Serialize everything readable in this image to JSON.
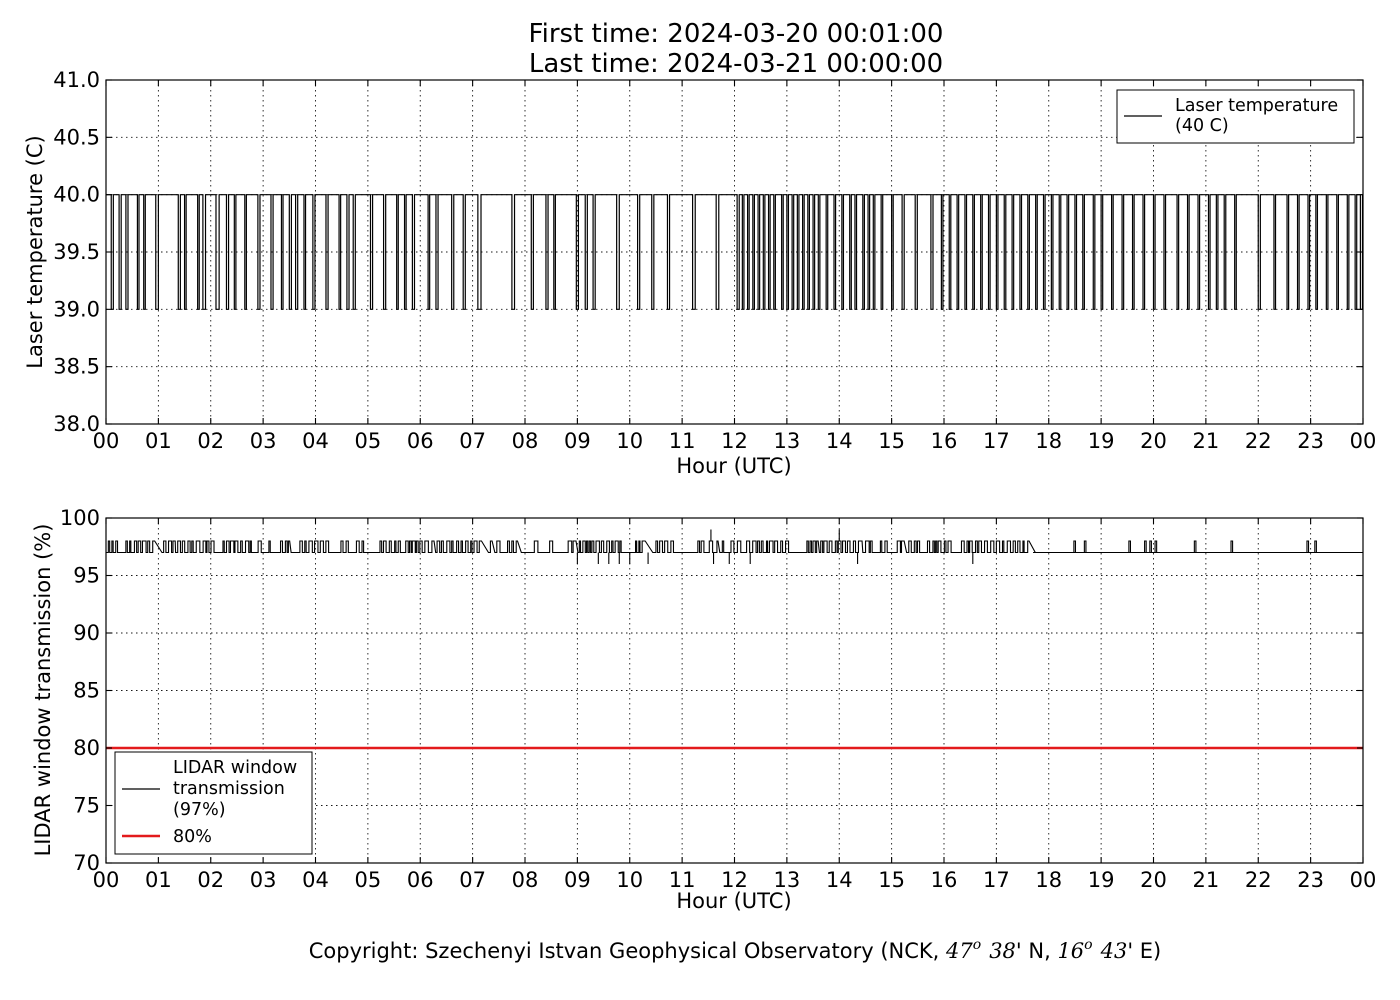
{
  "title": {
    "line1": "First time: 2024-03-20 00:01:00",
    "line2": "Last time: 2024-03-21 00:00:00"
  },
  "copyright": {
    "prefix": "Copyright: Szechenyi Istvan Geophysical Observatory (NCK, ",
    "lat_deg": "47",
    "lat_sup": "o",
    "lat_min": "38",
    "lat_suffix": "' N, ",
    "lon_deg": "16",
    "lon_sup": "o",
    "lon_min": "43",
    "lon_suffix": "' E)"
  },
  "chart_data": [
    {
      "type": "line",
      "xlabel": "Hour (UTC)",
      "ylabel": "Laser temperature (C)",
      "xlim": [
        0,
        24
      ],
      "ylim": [
        38.0,
        41.0
      ],
      "x_ticks": [
        "00",
        "01",
        "02",
        "03",
        "04",
        "05",
        "06",
        "07",
        "08",
        "09",
        "10",
        "11",
        "12",
        "13",
        "14",
        "15",
        "16",
        "17",
        "18",
        "19",
        "20",
        "21",
        "22",
        "23",
        "00"
      ],
      "y_ticks": [
        "38.0",
        "38.5",
        "39.0",
        "39.5",
        "40.0",
        "40.5",
        "41.0"
      ],
      "grid": true,
      "legend_position": "top-right",
      "series": [
        {
          "name": "Laser temperature\n(40 C)",
          "color": "#000000",
          "values_note_levels": [
            39.0,
            40.0
          ],
          "dips": [
            [
              0.1,
              0.14
            ],
            [
              0.25,
              0.29
            ],
            [
              0.38,
              0.42
            ],
            [
              0.6,
              0.63
            ],
            [
              0.72,
              0.75
            ],
            [
              0.95,
              1.0
            ],
            [
              1.38,
              1.42
            ],
            [
              1.5,
              1.53
            ],
            [
              1.75,
              1.78
            ],
            [
              1.85,
              1.9
            ],
            [
              2.1,
              2.16
            ],
            [
              2.3,
              2.34
            ],
            [
              2.45,
              2.48
            ],
            [
              2.65,
              2.68
            ],
            [
              2.9,
              2.94
            ],
            [
              3.15,
              3.19
            ],
            [
              3.35,
              3.38
            ],
            [
              3.5,
              3.54
            ],
            [
              3.62,
              3.66
            ],
            [
              3.78,
              3.81
            ],
            [
              3.95,
              3.99
            ],
            [
              4.2,
              4.24
            ],
            [
              4.45,
              4.48
            ],
            [
              4.6,
              4.64
            ],
            [
              4.72,
              4.76
            ],
            [
              5.05,
              5.09
            ],
            [
              5.3,
              5.34
            ],
            [
              5.55,
              5.58
            ],
            [
              5.7,
              5.73
            ],
            [
              5.85,
              5.89
            ],
            [
              6.15,
              6.18
            ],
            [
              6.3,
              6.34
            ],
            [
              6.6,
              6.64
            ],
            [
              6.82,
              6.86
            ],
            [
              7.1,
              7.16
            ],
            [
              7.75,
              7.8
            ],
            [
              8.12,
              8.16
            ],
            [
              8.4,
              8.44
            ],
            [
              8.55,
              8.58
            ],
            [
              8.98,
              9.02
            ],
            [
              9.15,
              9.19
            ],
            [
              9.3,
              9.34
            ],
            [
              9.75,
              9.8
            ],
            [
              10.15,
              10.19
            ],
            [
              10.42,
              10.46
            ],
            [
              10.72,
              10.76
            ],
            [
              11.2,
              11.25
            ],
            [
              11.65,
              11.7
            ],
            [
              12.05,
              12.09
            ],
            [
              12.15,
              12.18
            ],
            [
              12.25,
              12.28
            ],
            [
              12.35,
              12.38
            ],
            [
              12.45,
              12.48
            ],
            [
              12.55,
              12.58
            ],
            [
              12.65,
              12.68
            ],
            [
              12.75,
              12.78
            ],
            [
              12.9,
              12.93
            ],
            [
              13.0,
              13.03
            ],
            [
              13.1,
              13.13
            ],
            [
              13.2,
              13.23
            ],
            [
              13.3,
              13.33
            ],
            [
              13.4,
              13.43
            ],
            [
              13.5,
              13.53
            ],
            [
              13.6,
              13.63
            ],
            [
              13.75,
              13.78
            ],
            [
              13.9,
              13.93
            ],
            [
              14.05,
              14.08
            ],
            [
              14.2,
              14.23
            ],
            [
              14.3,
              14.33
            ],
            [
              14.45,
              14.48
            ],
            [
              14.55,
              14.58
            ],
            [
              14.65,
              14.68
            ],
            [
              14.8,
              14.83
            ],
            [
              15.0,
              15.03
            ],
            [
              15.2,
              15.24
            ],
            [
              15.45,
              15.49
            ],
            [
              15.75,
              15.79
            ],
            [
              15.95,
              15.98
            ],
            [
              16.1,
              16.13
            ],
            [
              16.25,
              16.28
            ],
            [
              16.4,
              16.43
            ],
            [
              16.55,
              16.58
            ],
            [
              16.7,
              16.73
            ],
            [
              16.85,
              16.88
            ],
            [
              17.0,
              17.03
            ],
            [
              17.15,
              17.18
            ],
            [
              17.3,
              17.33
            ],
            [
              17.45,
              17.48
            ],
            [
              17.6,
              17.63
            ],
            [
              17.75,
              17.78
            ],
            [
              17.9,
              17.93
            ],
            [
              18.05,
              18.08
            ],
            [
              18.2,
              18.23
            ],
            [
              18.35,
              18.38
            ],
            [
              18.5,
              18.53
            ],
            [
              18.65,
              18.68
            ],
            [
              18.85,
              18.88
            ],
            [
              19.0,
              19.03
            ],
            [
              19.2,
              19.23
            ],
            [
              19.4,
              19.43
            ],
            [
              19.6,
              19.63
            ],
            [
              19.8,
              19.83
            ],
            [
              20.0,
              20.03
            ],
            [
              20.2,
              20.23
            ],
            [
              20.45,
              20.48
            ],
            [
              20.65,
              20.68
            ],
            [
              20.85,
              20.88
            ],
            [
              21.05,
              21.08
            ],
            [
              21.2,
              21.23
            ],
            [
              21.35,
              21.38
            ],
            [
              21.55,
              21.58
            ],
            [
              22.0,
              22.04
            ],
            [
              22.3,
              22.33
            ],
            [
              22.55,
              22.58
            ],
            [
              22.75,
              22.78
            ],
            [
              22.95,
              22.98
            ],
            [
              23.1,
              23.13
            ],
            [
              23.3,
              23.33
            ],
            [
              23.5,
              23.53
            ],
            [
              23.7,
              23.73
            ],
            [
              23.85,
              23.88
            ],
            [
              23.95,
              23.99
            ]
          ]
        }
      ]
    },
    {
      "type": "line",
      "xlabel": "Hour (UTC)",
      "ylabel": "LIDAR window transmission (%)",
      "xlim": [
        0,
        24
      ],
      "ylim": [
        70,
        100
      ],
      "x_ticks": [
        "00",
        "01",
        "02",
        "03",
        "04",
        "05",
        "06",
        "07",
        "08",
        "09",
        "10",
        "11",
        "12",
        "13",
        "14",
        "15",
        "16",
        "17",
        "18",
        "19",
        "20",
        "21",
        "22",
        "23",
        "00"
      ],
      "y_ticks": [
        "70",
        "75",
        "80",
        "85",
        "90",
        "95",
        "100"
      ],
      "grid": true,
      "legend_position": "lower-left",
      "series": [
        {
          "name": "LIDAR window\ntransmission\n(97%)",
          "color": "#000000",
          "baseline": 97,
          "busy_until": 17.7,
          "spikes_up": [
            [
              11.55,
              99
            ],
            [
              14.0,
              99
            ]
          ],
          "spikes_down": [
            [
              9.0,
              96
            ],
            [
              9.4,
              96
            ],
            [
              9.6,
              96
            ],
            [
              9.8,
              96
            ],
            [
              10.0,
              96
            ],
            [
              10.35,
              96
            ],
            [
              11.6,
              96
            ],
            [
              11.9,
              96
            ],
            [
              12.3,
              96
            ],
            [
              14.35,
              96
            ],
            [
              16.55,
              96
            ]
          ],
          "late_spikes": [
            18.5,
            18.7,
            19.55,
            19.85,
            19.95,
            20.05,
            20.8,
            21.5,
            22.95,
            23.1
          ]
        },
        {
          "name": "80%",
          "color": "#e31a1c",
          "values_constant": 80
        }
      ]
    }
  ]
}
